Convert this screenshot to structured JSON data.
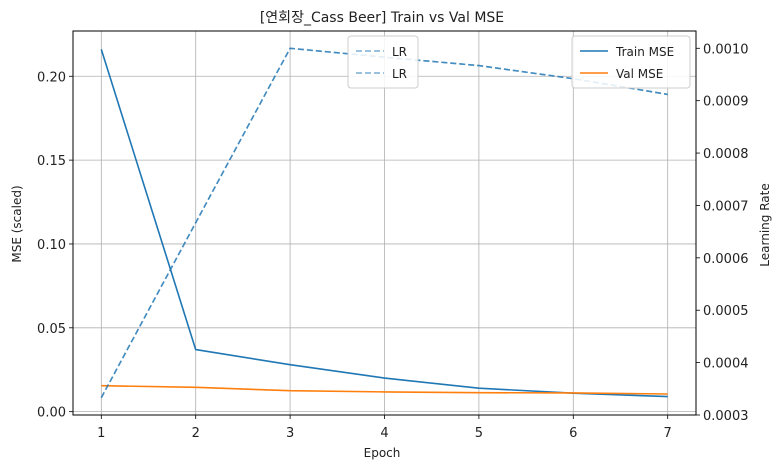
{
  "chart_data": {
    "type": "line",
    "title": "[연회장_Cass Beer] Train vs Val MSE",
    "xlabel": "Epoch",
    "ylabel": "MSE (scaled)",
    "y2label": "Learning Rate",
    "x": [
      1,
      2,
      3,
      4,
      5,
      6,
      7
    ],
    "xlim": [
      0.7,
      7.3
    ],
    "ylim": [
      -0.002,
      0.227
    ],
    "y2lim": [
      0.0003,
      0.001033
    ],
    "xticks": [
      "1",
      "2",
      "3",
      "4",
      "5",
      "6",
      "7"
    ],
    "yticks": [
      "0.00",
      "0.05",
      "0.10",
      "0.15",
      "0.20"
    ],
    "y2ticks": [
      "0.0003",
      "0.0004",
      "0.0005",
      "0.0006",
      "0.0007",
      "0.0008",
      "0.0009",
      "0.0010"
    ],
    "grid": true,
    "series": [
      {
        "name": "Train MSE",
        "axis": "left",
        "style": "solid",
        "color": "#1f77b4",
        "values": [
          0.216,
          0.037,
          0.028,
          0.02,
          0.014,
          0.011,
          0.009
        ]
      },
      {
        "name": "Val MSE",
        "axis": "left",
        "style": "solid",
        "color": "#ff7f0e",
        "values": [
          0.0155,
          0.0145,
          0.0125,
          0.0118,
          0.0113,
          0.0112,
          0.0105
        ]
      },
      {
        "name": "LR",
        "axis": "right",
        "style": "dashed",
        "color": "#1f77b4",
        "values": [
          0.000333,
          0.000667,
          0.001,
          0.000983,
          0.000967,
          0.000942,
          0.000912
        ]
      },
      {
        "name": "LR",
        "axis": "right",
        "style": "dashed",
        "color": "#1f77b4",
        "values": [
          0.000333,
          0.000667,
          0.001,
          0.000983,
          0.000967,
          0.000942,
          0.000912
        ]
      }
    ],
    "legends": [
      {
        "placement": "top-center",
        "entries": [
          "LR",
          "LR"
        ]
      },
      {
        "placement": "top-right",
        "entries": [
          "Train MSE",
          "Val MSE"
        ]
      }
    ]
  }
}
